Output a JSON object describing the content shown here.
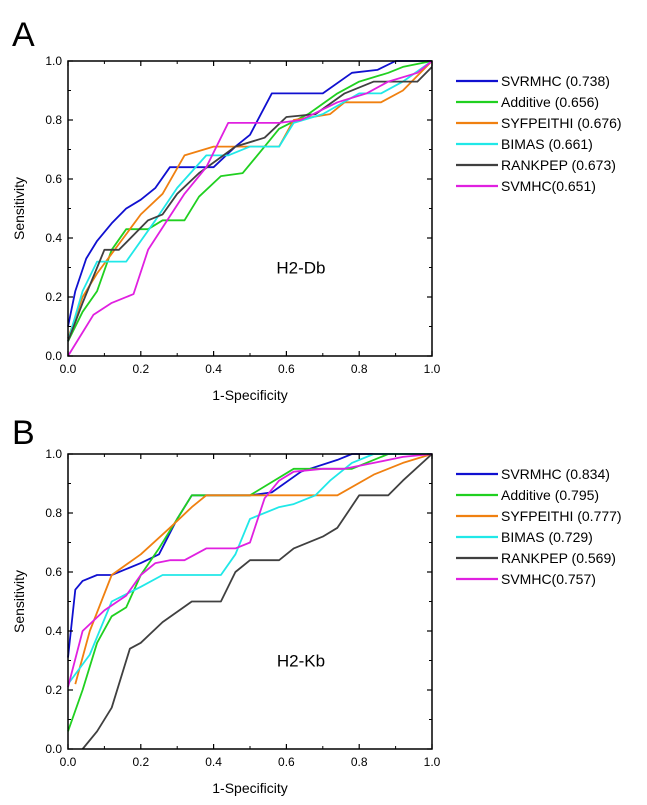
{
  "chart_data": [
    {
      "type": "line",
      "panel": "A",
      "annotation": "H2-Db",
      "xlabel": "1-Specificity",
      "ylabel": "Sensitivity",
      "xlim": [
        0.0,
        1.0
      ],
      "ylim": [
        0.0,
        1.0
      ],
      "xticks": [
        "0.0",
        "0.2",
        "0.4",
        "0.6",
        "0.8",
        "1.0"
      ],
      "yticks": [
        "0.0",
        "0.2",
        "0.4",
        "0.6",
        "0.8",
        "1.0"
      ],
      "grid": false,
      "legend_position": "right",
      "series": [
        {
          "name": "SVRMHC (0.738)",
          "color": "#1010d0",
          "points": [
            [
              0,
              0.1
            ],
            [
              0.02,
              0.22
            ],
            [
              0.05,
              0.33
            ],
            [
              0.08,
              0.39
            ],
            [
              0.12,
              0.45
            ],
            [
              0.16,
              0.5
            ],
            [
              0.2,
              0.53
            ],
            [
              0.24,
              0.57
            ],
            [
              0.28,
              0.64
            ],
            [
              0.4,
              0.64
            ],
            [
              0.46,
              0.71
            ],
            [
              0.5,
              0.75
            ],
            [
              0.53,
              0.82
            ],
            [
              0.56,
              0.89
            ],
            [
              0.7,
              0.89
            ],
            [
              0.78,
              0.96
            ],
            [
              0.85,
              0.97
            ],
            [
              0.9,
              1.0
            ],
            [
              1.0,
              1.0
            ]
          ]
        },
        {
          "name": "Additive (0.656)",
          "color": "#20d020",
          "points": [
            [
              0,
              0.05
            ],
            [
              0.04,
              0.15
            ],
            [
              0.08,
              0.22
            ],
            [
              0.12,
              0.36
            ],
            [
              0.16,
              0.43
            ],
            [
              0.22,
              0.43
            ],
            [
              0.26,
              0.46
            ],
            [
              0.32,
              0.46
            ],
            [
              0.36,
              0.54
            ],
            [
              0.42,
              0.61
            ],
            [
              0.48,
              0.62
            ],
            [
              0.54,
              0.71
            ],
            [
              0.58,
              0.77
            ],
            [
              0.66,
              0.82
            ],
            [
              0.74,
              0.89
            ],
            [
              0.8,
              0.93
            ],
            [
              0.88,
              0.96
            ],
            [
              0.92,
              0.98
            ],
            [
              1.0,
              1.0
            ]
          ]
        },
        {
          "name": "SYFPEITHI (0.676)",
          "color": "#f08010",
          "points": [
            [
              0,
              0.06
            ],
            [
              0.04,
              0.2
            ],
            [
              0.08,
              0.28
            ],
            [
              0.14,
              0.38
            ],
            [
              0.2,
              0.48
            ],
            [
              0.26,
              0.55
            ],
            [
              0.32,
              0.68
            ],
            [
              0.4,
              0.71
            ],
            [
              0.48,
              0.71
            ],
            [
              0.58,
              0.71
            ],
            [
              0.62,
              0.8
            ],
            [
              0.72,
              0.82
            ],
            [
              0.76,
              0.86
            ],
            [
              0.86,
              0.86
            ],
            [
              0.92,
              0.9
            ],
            [
              1.0,
              1.0
            ]
          ]
        },
        {
          "name": "BIMAS (0.661)",
          "color": "#20e8e8",
          "points": [
            [
              0,
              0.05
            ],
            [
              0.04,
              0.22
            ],
            [
              0.08,
              0.32
            ],
            [
              0.16,
              0.32
            ],
            [
              0.24,
              0.46
            ],
            [
              0.3,
              0.57
            ],
            [
              0.38,
              0.68
            ],
            [
              0.44,
              0.68
            ],
            [
              0.5,
              0.71
            ],
            [
              0.58,
              0.71
            ],
            [
              0.62,
              0.79
            ],
            [
              0.7,
              0.82
            ],
            [
              0.8,
              0.89
            ],
            [
              0.86,
              0.89
            ],
            [
              0.92,
              0.93
            ],
            [
              1.0,
              1.0
            ]
          ]
        },
        {
          "name": "RANKPEP (0.673)",
          "color": "#404040",
          "points": [
            [
              0,
              0.05
            ],
            [
              0.04,
              0.18
            ],
            [
              0.1,
              0.36
            ],
            [
              0.14,
              0.36
            ],
            [
              0.22,
              0.46
            ],
            [
              0.26,
              0.48
            ],
            [
              0.3,
              0.55
            ],
            [
              0.36,
              0.62
            ],
            [
              0.46,
              0.71
            ],
            [
              0.54,
              0.74
            ],
            [
              0.6,
              0.81
            ],
            [
              0.68,
              0.82
            ],
            [
              0.76,
              0.89
            ],
            [
              0.84,
              0.93
            ],
            [
              0.96,
              0.93
            ],
            [
              1.0,
              0.98
            ]
          ]
        },
        {
          "name": "SVMHC(0.651)",
          "color": "#e020e0",
          "points": [
            [
              0,
              0
            ],
            [
              0.04,
              0.08
            ],
            [
              0.07,
              0.14
            ],
            [
              0.12,
              0.18
            ],
            [
              0.18,
              0.21
            ],
            [
              0.22,
              0.36
            ],
            [
              0.32,
              0.55
            ],
            [
              0.38,
              0.64
            ],
            [
              0.44,
              0.79
            ],
            [
              0.58,
              0.79
            ],
            [
              0.64,
              0.8
            ],
            [
              0.74,
              0.86
            ],
            [
              0.82,
              0.89
            ],
            [
              0.88,
              0.93
            ],
            [
              0.96,
              0.96
            ],
            [
              1.0,
              1.0
            ]
          ]
        }
      ]
    },
    {
      "type": "line",
      "panel": "B",
      "annotation": "H2-Kb",
      "xlabel": "1-Specificity",
      "ylabel": "Sensitivity",
      "xlim": [
        0.0,
        1.0
      ],
      "ylim": [
        0.0,
        1.0
      ],
      "xticks": [
        "0.0",
        "0.2",
        "0.4",
        "0.6",
        "0.8",
        "1.0"
      ],
      "yticks": [
        "0.0",
        "0.2",
        "0.4",
        "0.6",
        "0.8",
        "1.0"
      ],
      "grid": false,
      "legend_position": "right",
      "series": [
        {
          "name": "SVRMHC (0.834)",
          "color": "#1010d0",
          "points": [
            [
              0,
              0.31
            ],
            [
              0.02,
              0.54
            ],
            [
              0.04,
              0.57
            ],
            [
              0.08,
              0.59
            ],
            [
              0.12,
              0.59
            ],
            [
              0.2,
              0.63
            ],
            [
              0.25,
              0.66
            ],
            [
              0.3,
              0.78
            ],
            [
              0.34,
              0.86
            ],
            [
              0.5,
              0.86
            ],
            [
              0.56,
              0.87
            ],
            [
              0.64,
              0.94
            ],
            [
              0.74,
              0.98
            ],
            [
              0.78,
              1.0
            ],
            [
              1.0,
              1.0
            ]
          ]
        },
        {
          "name": "Additive (0.795)",
          "color": "#20d020",
          "points": [
            [
              0,
              0.06
            ],
            [
              0.04,
              0.2
            ],
            [
              0.08,
              0.36
            ],
            [
              0.12,
              0.45
            ],
            [
              0.16,
              0.48
            ],
            [
              0.2,
              0.59
            ],
            [
              0.25,
              0.68
            ],
            [
              0.34,
              0.86
            ],
            [
              0.5,
              0.86
            ],
            [
              0.62,
              0.95
            ],
            [
              0.78,
              0.95
            ],
            [
              0.88,
              1.0
            ],
            [
              1.0,
              1.0
            ]
          ]
        },
        {
          "name": "SYFPEITHI (0.777)",
          "color": "#f08010",
          "points": [
            [
              0.02,
              0.22
            ],
            [
              0.06,
              0.4
            ],
            [
              0.12,
              0.59
            ],
            [
              0.2,
              0.66
            ],
            [
              0.28,
              0.75
            ],
            [
              0.34,
              0.82
            ],
            [
              0.38,
              0.86
            ],
            [
              0.48,
              0.86
            ],
            [
              0.52,
              0.86
            ],
            [
              0.74,
              0.86
            ],
            [
              0.84,
              0.93
            ],
            [
              0.92,
              0.97
            ],
            [
              1.0,
              1.0
            ]
          ]
        },
        {
          "name": "BIMAS (0.729)",
          "color": "#20e8e8",
          "points": [
            [
              0,
              0.22
            ],
            [
              0.06,
              0.32
            ],
            [
              0.12,
              0.5
            ],
            [
              0.2,
              0.55
            ],
            [
              0.26,
              0.59
            ],
            [
              0.34,
              0.59
            ],
            [
              0.42,
              0.59
            ],
            [
              0.46,
              0.66
            ],
            [
              0.5,
              0.78
            ],
            [
              0.58,
              0.82
            ],
            [
              0.62,
              0.83
            ],
            [
              0.68,
              0.86
            ],
            [
              0.72,
              0.91
            ],
            [
              0.78,
              0.97
            ],
            [
              0.84,
              1.0
            ],
            [
              1.0,
              1.0
            ]
          ]
        },
        {
          "name": "RANKPEP (0.569)",
          "color": "#404040",
          "points": [
            [
              0.04,
              0
            ],
            [
              0.08,
              0.06
            ],
            [
              0.12,
              0.14
            ],
            [
              0.17,
              0.34
            ],
            [
              0.2,
              0.36
            ],
            [
              0.26,
              0.43
            ],
            [
              0.34,
              0.5
            ],
            [
              0.42,
              0.5
            ],
            [
              0.46,
              0.6
            ],
            [
              0.5,
              0.64
            ],
            [
              0.58,
              0.64
            ],
            [
              0.62,
              0.68
            ],
            [
              0.7,
              0.72
            ],
            [
              0.74,
              0.75
            ],
            [
              0.8,
              0.86
            ],
            [
              0.88,
              0.86
            ],
            [
              0.92,
              0.91
            ],
            [
              1.0,
              1.0
            ]
          ]
        },
        {
          "name": "SVMHC(0.757)",
          "color": "#e020e0",
          "points": [
            [
              0,
              0.21
            ],
            [
              0.04,
              0.4
            ],
            [
              0.1,
              0.47
            ],
            [
              0.16,
              0.52
            ],
            [
              0.2,
              0.59
            ],
            [
              0.24,
              0.63
            ],
            [
              0.28,
              0.64
            ],
            [
              0.32,
              0.64
            ],
            [
              0.38,
              0.68
            ],
            [
              0.46,
              0.68
            ],
            [
              0.5,
              0.7
            ],
            [
              0.54,
              0.85
            ],
            [
              0.58,
              0.91
            ],
            [
              0.62,
              0.94
            ],
            [
              0.7,
              0.95
            ],
            [
              0.76,
              0.95
            ],
            [
              0.84,
              0.97
            ],
            [
              0.92,
              0.99
            ],
            [
              1.0,
              1.0
            ]
          ]
        }
      ]
    }
  ]
}
